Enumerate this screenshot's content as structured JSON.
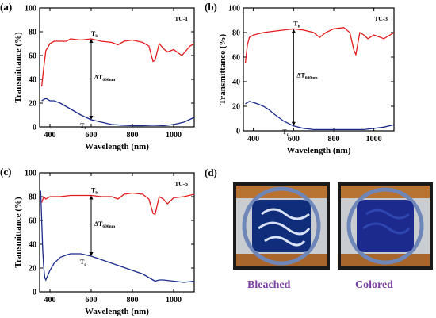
{
  "figure": {
    "panel_d_label": "(d)",
    "photo_labels": {
      "bleached": "Bleached",
      "colored": "Colored"
    },
    "colors": {
      "bleached_line": "#e41a1c",
      "colored_line": "#1a2a8c",
      "photo_label": "#7b3fa3"
    }
  },
  "chart_data": [
    {
      "type": "line",
      "panel": "(a)",
      "sample": "TC-1",
      "xlabel": "Wavelength (nm)",
      "ylabel": "Transmittance (%)",
      "xlim": [
        350,
        1100
      ],
      "ylim": [
        0,
        100
      ],
      "xticks": [
        400,
        600,
        800,
        1000
      ],
      "yticks": [
        0,
        20,
        40,
        60,
        80,
        100
      ],
      "annotations": {
        "top": "T",
        "top_sub": "b",
        "bottom": "T",
        "bottom_sub": "c",
        "delta": "ΔT",
        "delta_sub": "600nm",
        "delta_at": 600
      },
      "series": [
        {
          "x": [
            360,
            370,
            380,
            400,
            420,
            450,
            480,
            500,
            550,
            600,
            650,
            700,
            730,
            760,
            800,
            850,
            880,
            900,
            910,
            930,
            950,
            970,
            1000,
            1040,
            1080,
            1100
          ],
          "values": [
            34,
            50,
            64,
            70,
            72,
            72,
            72,
            74,
            73,
            74,
            72,
            71,
            69,
            72,
            73,
            71,
            68,
            55,
            56,
            70,
            66,
            63,
            65,
            60,
            68,
            70
          ]
        },
        {
          "x": [
            360,
            380,
            400,
            420,
            450,
            480,
            500,
            550,
            600,
            650,
            700,
            750,
            800,
            850,
            900,
            950,
            1000,
            1050,
            1100
          ],
          "values": [
            22,
            24,
            22,
            22,
            20,
            17,
            15,
            10,
            6,
            4,
            2,
            1.5,
            1,
            1,
            1.5,
            1,
            2,
            4,
            8
          ]
        }
      ]
    },
    {
      "type": "line",
      "panel": "(b)",
      "sample": "TC-3",
      "xlabel": "Wavelength (nm)",
      "ylabel": "Transmittance (%)",
      "xlim": [
        350,
        1100
      ],
      "ylim": [
        0,
        100
      ],
      "xticks": [
        400,
        600,
        800,
        1000
      ],
      "yticks": [
        0,
        20,
        40,
        60,
        80,
        100
      ],
      "annotations": {
        "top": "T",
        "top_sub": "b",
        "bottom": "T",
        "bottom_sub": "c",
        "delta": "ΔT",
        "delta_sub": "600nm",
        "delta_at": 600
      },
      "series": [
        {
          "x": [
            360,
            370,
            380,
            400,
            450,
            500,
            550,
            600,
            650,
            700,
            730,
            760,
            800,
            850,
            880,
            900,
            910,
            930,
            950,
            970,
            1000,
            1050,
            1100
          ],
          "values": [
            55,
            70,
            76,
            78,
            80,
            81,
            82,
            83,
            82,
            80,
            76,
            80,
            83,
            84,
            80,
            66,
            62,
            80,
            78,
            75,
            78,
            75,
            80
          ]
        },
        {
          "x": [
            360,
            380,
            400,
            420,
            450,
            480,
            500,
            550,
            600,
            650,
            700,
            750,
            800,
            850,
            900,
            950,
            1000,
            1050,
            1100
          ],
          "values": [
            22,
            24,
            23,
            22,
            20,
            17,
            14,
            8,
            4,
            2,
            1,
            1,
            1,
            1,
            1,
            1,
            2,
            3,
            5
          ]
        }
      ]
    },
    {
      "type": "line",
      "panel": "(c)",
      "sample": "TC-5",
      "xlabel": "Wavelength (nm)",
      "ylabel": "Transmittance (%)",
      "xlim": [
        350,
        1100
      ],
      "ylim": [
        0,
        100
      ],
      "xticks": [
        400,
        600,
        800,
        1000
      ],
      "yticks": [
        0,
        20,
        40,
        60,
        80,
        100
      ],
      "annotations": {
        "top": "T",
        "top_sub": "b",
        "bottom": "T",
        "bottom_sub": "c",
        "delta": "ΔT",
        "delta_sub": "600nm",
        "delta_at": 600
      },
      "series": [
        {
          "x": [
            360,
            370,
            380,
            400,
            450,
            500,
            550,
            600,
            650,
            700,
            730,
            760,
            800,
            850,
            880,
            900,
            910,
            930,
            950,
            970,
            1000,
            1050,
            1100
          ],
          "values": [
            75,
            80,
            78,
            80,
            80,
            81,
            81,
            81,
            80,
            80,
            78,
            82,
            83,
            82,
            78,
            66,
            65,
            80,
            78,
            74,
            79,
            80,
            82
          ]
        },
        {
          "x": [
            355,
            360,
            365,
            370,
            375,
            380,
            390,
            400,
            420,
            450,
            480,
            500,
            550,
            600,
            650,
            700,
            750,
            800,
            850,
            880,
            900,
            910,
            930,
            950,
            1000,
            1050,
            1100
          ],
          "values": [
            85,
            60,
            35,
            20,
            12,
            10,
            14,
            18,
            24,
            29,
            31,
            32,
            32,
            30,
            27,
            24,
            21,
            18,
            15,
            12,
            10,
            9,
            10,
            10,
            9,
            8,
            9
          ]
        }
      ]
    }
  ]
}
